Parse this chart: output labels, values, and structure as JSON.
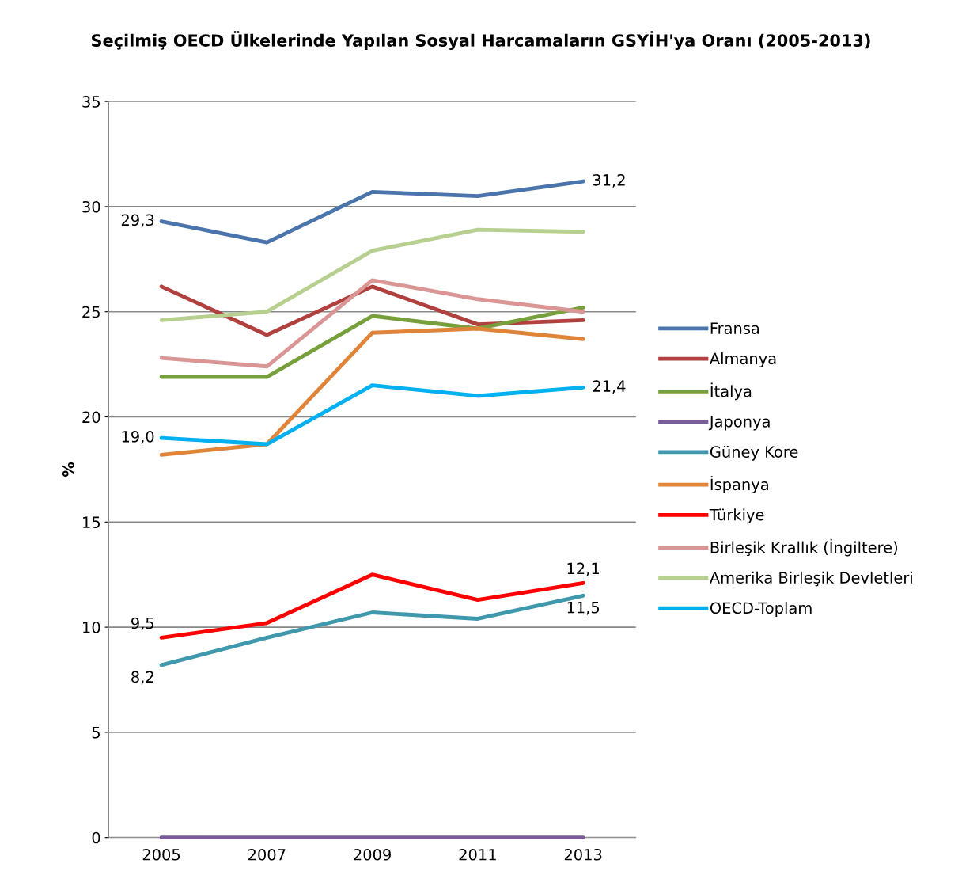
{
  "chart_data": {
    "type": "line",
    "title": "Seçilmiş OECD Ülkelerinde Yapılan Sosyal Harcamaların GSYİH'ya Oranı (2005-2013)",
    "ylabel": "%",
    "categories": [
      "2005",
      "2007",
      "2009",
      "2011",
      "2013"
    ],
    "ylim": [
      0,
      35
    ],
    "yticks": [
      0,
      5,
      10,
      15,
      20,
      25,
      30,
      35
    ],
    "grid": "y",
    "legend": "right",
    "line_style": "solid",
    "marker": "none",
    "series": [
      {
        "name": "Fransa",
        "color": "#4a74ac",
        "values": [
          29.3,
          28.3,
          30.7,
          30.5,
          31.2
        ],
        "value_labels": [
          "29,3",
          null,
          null,
          null,
          "31,2"
        ]
      },
      {
        "name": "Almanya",
        "color": "#b0413e",
        "values": [
          26.2,
          23.9,
          26.2,
          24.4,
          24.6
        ]
      },
      {
        "name": "İtalya",
        "color": "#77a03d",
        "values": [
          21.9,
          21.9,
          24.8,
          24.2,
          25.2
        ]
      },
      {
        "name": "Japonya",
        "color": "#7a5c98",
        "values": [
          0,
          0,
          0,
          0,
          0
        ]
      },
      {
        "name": "Güney Kore",
        "color": "#3f98ac",
        "values": [
          8.2,
          9.5,
          10.7,
          10.4,
          11.5
        ],
        "value_labels": [
          "8,2",
          null,
          null,
          null,
          "11,5"
        ]
      },
      {
        "name": "İspanya",
        "color": "#e0843a",
        "values": [
          18.2,
          18.7,
          24.0,
          24.2,
          23.7
        ]
      },
      {
        "name": "Türkiye",
        "color": "#ff0000",
        "values": [
          9.5,
          10.2,
          12.5,
          11.3,
          12.1
        ],
        "value_labels": [
          "9,5",
          null,
          null,
          null,
          "12,1"
        ]
      },
      {
        "name": "Birleşik Krallık (İngiltere)",
        "color": "#d99694",
        "values": [
          22.8,
          22.4,
          26.5,
          25.6,
          25.0
        ]
      },
      {
        "name": "Amerika Birleşik Devletleri",
        "color": "#b8d08f",
        "values": [
          24.6,
          25.0,
          27.9,
          28.9,
          28.8
        ]
      },
      {
        "name": "OECD-Toplam",
        "color": "#00b0f0",
        "values": [
          19.0,
          18.7,
          21.5,
          21.0,
          21.4
        ],
        "value_labels": [
          "19,0",
          null,
          null,
          null,
          "21,4"
        ]
      }
    ]
  }
}
